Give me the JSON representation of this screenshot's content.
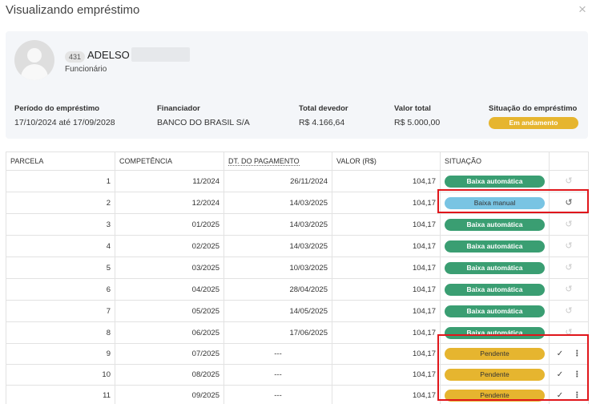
{
  "modal": {
    "title": "Visualizando empréstimo",
    "close_glyph": "×"
  },
  "employee": {
    "id": "431",
    "name": "ADELSO",
    "role": "Funcionário"
  },
  "loan": {
    "period_label": "Período do empréstimo",
    "period_value": "17/10/2024 até 17/09/2028",
    "lender_label": "Financiador",
    "lender_value": "BANCO DO BRASIL S/A",
    "total_due_label": "Total devedor",
    "total_due_value": "R$ 4.166,64",
    "total_value_label": "Valor total",
    "total_value_value": "R$ 5.000,00",
    "status_label": "Situação do empréstimo",
    "status_value": "Em andamento",
    "status_color": "#e6b52f"
  },
  "table": {
    "headers": {
      "parcela": "PARCELA",
      "competencia": "COMPETÊNCIA",
      "dt_pagamento": "DT. DO PAGAMENTO",
      "valor": "VALOR (R$)",
      "situacao": "SITUAÇÃO"
    },
    "rows": [
      {
        "parcela": "1",
        "competencia": "11/2024",
        "dt_pagamento": "26/11/2024",
        "valor": "104,17",
        "situacao": "Baixa automática"
      },
      {
        "parcela": "2",
        "competencia": "12/2024",
        "dt_pagamento": "14/03/2025",
        "valor": "104,17",
        "situacao": "Baixa manual"
      },
      {
        "parcela": "3",
        "competencia": "01/2025",
        "dt_pagamento": "14/03/2025",
        "valor": "104,17",
        "situacao": "Baixa automática"
      },
      {
        "parcela": "4",
        "competencia": "02/2025",
        "dt_pagamento": "14/03/2025",
        "valor": "104,17",
        "situacao": "Baixa automática"
      },
      {
        "parcela": "5",
        "competencia": "03/2025",
        "dt_pagamento": "10/03/2025",
        "valor": "104,17",
        "situacao": "Baixa automática"
      },
      {
        "parcela": "6",
        "competencia": "04/2025",
        "dt_pagamento": "28/04/2025",
        "valor": "104,17",
        "situacao": "Baixa automática"
      },
      {
        "parcela": "7",
        "competencia": "05/2025",
        "dt_pagamento": "14/05/2025",
        "valor": "104,17",
        "situacao": "Baixa automática"
      },
      {
        "parcela": "8",
        "competencia": "06/2025",
        "dt_pagamento": "17/06/2025",
        "valor": "104,17",
        "situacao": "Baixa automática"
      },
      {
        "parcela": "9",
        "competencia": "07/2025",
        "dt_pagamento": "---",
        "valor": "104,17",
        "situacao": "Pendente"
      },
      {
        "parcela": "10",
        "competencia": "08/2025",
        "dt_pagamento": "---",
        "valor": "104,17",
        "situacao": "Pendente"
      },
      {
        "parcela": "11",
        "competencia": "09/2025",
        "dt_pagamento": "---",
        "valor": "104,17",
        "situacao": "Pendente"
      }
    ],
    "icons": {
      "undo": "↺",
      "check": "✓",
      "menu": "⋮"
    }
  },
  "colors": {
    "auto": "#3a9e72",
    "manual": "#79c4e3",
    "pending": "#e6b52f",
    "highlight": "#e0161b"
  }
}
